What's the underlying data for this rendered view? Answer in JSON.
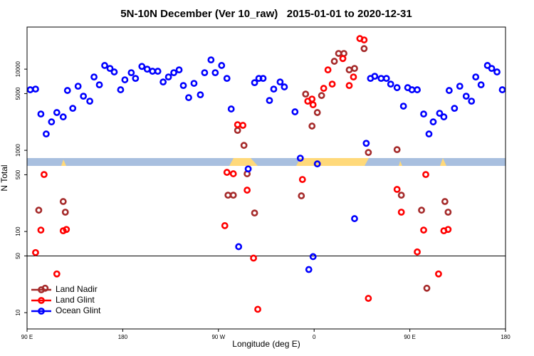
{
  "chart_data": {
    "type": "scatter",
    "title": "5N-10N December (Ver 10_raw)   2015-01-01 to 2020-12-31",
    "xlabel": "Longitude (deg E)",
    "ylabel": "N Total",
    "xlim": [
      90,
      540
    ],
    "xticks": [
      {
        "value": 90,
        "label": "90 E"
      },
      {
        "value": 180,
        "label": "180"
      },
      {
        "value": 270,
        "label": "90 W"
      },
      {
        "value": 360,
        "label": "0"
      },
      {
        "value": 450,
        "label": "90 E"
      },
      {
        "value": 540,
        "label": "180"
      }
    ],
    "ylim": [
      6.3,
      33000
    ],
    "yscale": "log",
    "yticks": [
      10,
      50,
      100,
      500,
      1000,
      5000,
      10000
    ],
    "hline": 50,
    "legend": "bottom-left",
    "series": [
      {
        "name": "Land Nadir",
        "color": "#a52a2a",
        "x": [
          101,
          107,
          124,
          126,
          279,
          284,
          288,
          294,
          297,
          304,
          348,
          352,
          358,
          363,
          367,
          379,
          383,
          388,
          393,
          398,
          407,
          411,
          438,
          442,
          461,
          466,
          483,
          486
        ],
        "values": [
          183,
          20,
          234,
          173,
          280,
          280,
          1760,
          1150,
          514,
          169,
          275,
          4930,
          1990,
          2920,
          4730,
          12500,
          15600,
          15600,
          9800,
          10200,
          17900,
          940,
          1020,
          280,
          183,
          20,
          234,
          173
        ]
      },
      {
        "name": "Land Glint",
        "color": "#ff0000",
        "x": [
          98,
          103,
          106,
          118,
          124,
          127,
          276,
          278,
          284,
          288,
          293,
          297,
          303,
          307,
          349,
          354,
          358,
          359,
          369,
          373,
          377,
          387,
          393,
          397,
          403,
          407,
          411,
          438,
          442,
          457,
          463,
          465,
          477,
          482,
          486
        ],
        "values": [
          55,
          104,
          503,
          30,
          102,
          106,
          118,
          535,
          514,
          2070,
          2030,
          323,
          47,
          11,
          437,
          4030,
          4280,
          3640,
          5800,
          9800,
          6540,
          13500,
          6280,
          8010,
          23800,
          22900,
          15,
          330,
          173,
          56,
          104,
          503,
          30,
          102,
          106
        ]
      },
      {
        "name": "Ocean Glint",
        "color": "#0000ff",
        "x": [
          93,
          98,
          103,
          108,
          113,
          118,
          124,
          128,
          133,
          138,
          143,
          149,
          153,
          158,
          163,
          168,
          172,
          178,
          182,
          188,
          192,
          198,
          203,
          208,
          213,
          218,
          223,
          228,
          233,
          237,
          242,
          247,
          253,
          257,
          263,
          267,
          273,
          278,
          282,
          289,
          298,
          304,
          308,
          312,
          318,
          322,
          328,
          332,
          342,
          347,
          355,
          359,
          363,
          398,
          409,
          413,
          417,
          423,
          428,
          432,
          438,
          444,
          448,
          452,
          457,
          463,
          468,
          472,
          478,
          482,
          487,
          492,
          497,
          503,
          508,
          512,
          517,
          523,
          527,
          532,
          537
        ],
        "values": [
          5570,
          5680,
          2800,
          1590,
          2240,
          2920,
          2580,
          5460,
          3290,
          6160,
          4640,
          4030,
          8010,
          6410,
          11100,
          10200,
          9230,
          5570,
          7390,
          9040,
          7690,
          10800,
          10000,
          9420,
          9420,
          6950,
          8010,
          9040,
          9800,
          6280,
          4460,
          6680,
          4830,
          9040,
          13000,
          9040,
          11100,
          7690,
          3230,
          65,
          590,
          6810,
          7690,
          7690,
          4110,
          5680,
          6950,
          6040,
          2980,
          800,
          34,
          49,
          680,
          144,
          1220,
          7690,
          8170,
          7690,
          7690,
          6540,
          5920,
          3500,
          5920,
          5570,
          5570,
          2800,
          1590,
          2240,
          2860,
          2580,
          5460,
          3290,
          6160,
          4640,
          4030,
          8010,
          6410,
          11100,
          10200,
          9230,
          5570
        ]
      }
    ]
  }
}
